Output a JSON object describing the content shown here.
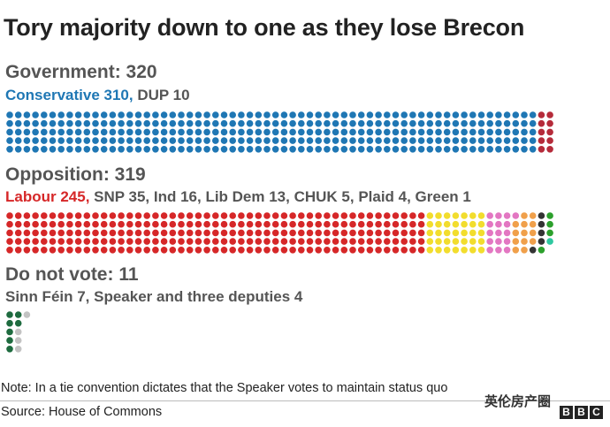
{
  "chart_data": {
    "type": "waffle",
    "title": "Tory majority down to one as they lose Brecon",
    "groups": [
      {
        "heading": "Government: 320",
        "breakdown_highlight": "Conservative 310,",
        "breakdown_rest": " DUP 10",
        "segments": [
          {
            "name": "Conservative",
            "value": 310,
            "color": "#1f77b4"
          },
          {
            "name": "DUP",
            "value": 10,
            "color": "#b52b3a"
          }
        ]
      },
      {
        "heading": "Opposition: 319",
        "breakdown_highlight": "Labour 245,",
        "breakdown_rest": " SNP 35, Ind 16, Lib Dem 13, CHUK 5, Plaid 4, Green 1",
        "segments": [
          {
            "name": "Labour",
            "value": 245,
            "color": "#d62728"
          },
          {
            "name": "SNP",
            "value": 35,
            "color": "#f2dd2d"
          },
          {
            "name": "Ind",
            "value": 16,
            "color": "#e377c2"
          },
          {
            "name": "Lib Dem",
            "value": 13,
            "color": "#f0a04b"
          },
          {
            "name": "CHUK",
            "value": 5,
            "color": "#333333"
          },
          {
            "name": "Plaid",
            "value": 4,
            "color": "#2ca02c"
          },
          {
            "name": "Green",
            "value": 1,
            "color": "#2fc8a0"
          }
        ]
      },
      {
        "heading": "Do not vote: 11",
        "breakdown_highlight": "",
        "breakdown_rest": "Sinn Féin 7, Speaker and three deputies 4",
        "segments": [
          {
            "name": "Sinn Féin",
            "value": 7,
            "color": "#1e6b3f"
          },
          {
            "name": "Speaker and three deputies",
            "value": 4,
            "color": "#c3c3c3"
          }
        ]
      }
    ]
  },
  "note": "Note: In a tie convention dictates that the Speaker votes to maintain status quo",
  "source": "Source: House of Commons",
  "watermark": "英伦房产圈",
  "logo": [
    "B",
    "B",
    "C"
  ]
}
